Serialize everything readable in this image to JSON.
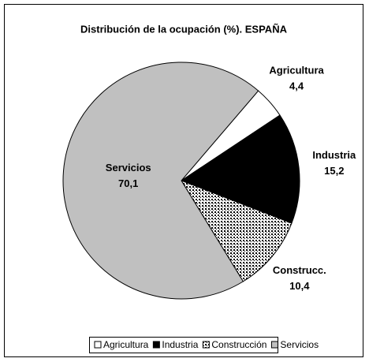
{
  "chart_data": {
    "type": "pie",
    "title": "Distribución de la ocupación (%). ESPAÑA",
    "categories": [
      "Agricultura",
      "Industria",
      "Construcción",
      "Servicios"
    ],
    "slice_labels": [
      "Agricultura",
      "Industria",
      "Construcc.",
      "Servicios"
    ],
    "values": [
      4.4,
      15.2,
      10.4,
      70.1
    ],
    "value_labels": [
      "4,4",
      "15,2",
      "10,4",
      "70,1"
    ],
    "colors": [
      "#ffffff",
      "#000000",
      "#ffffff",
      "#c0c0c0"
    ],
    "patterns": [
      "none",
      "none",
      "dots",
      "none"
    ],
    "legend": "bottom"
  }
}
